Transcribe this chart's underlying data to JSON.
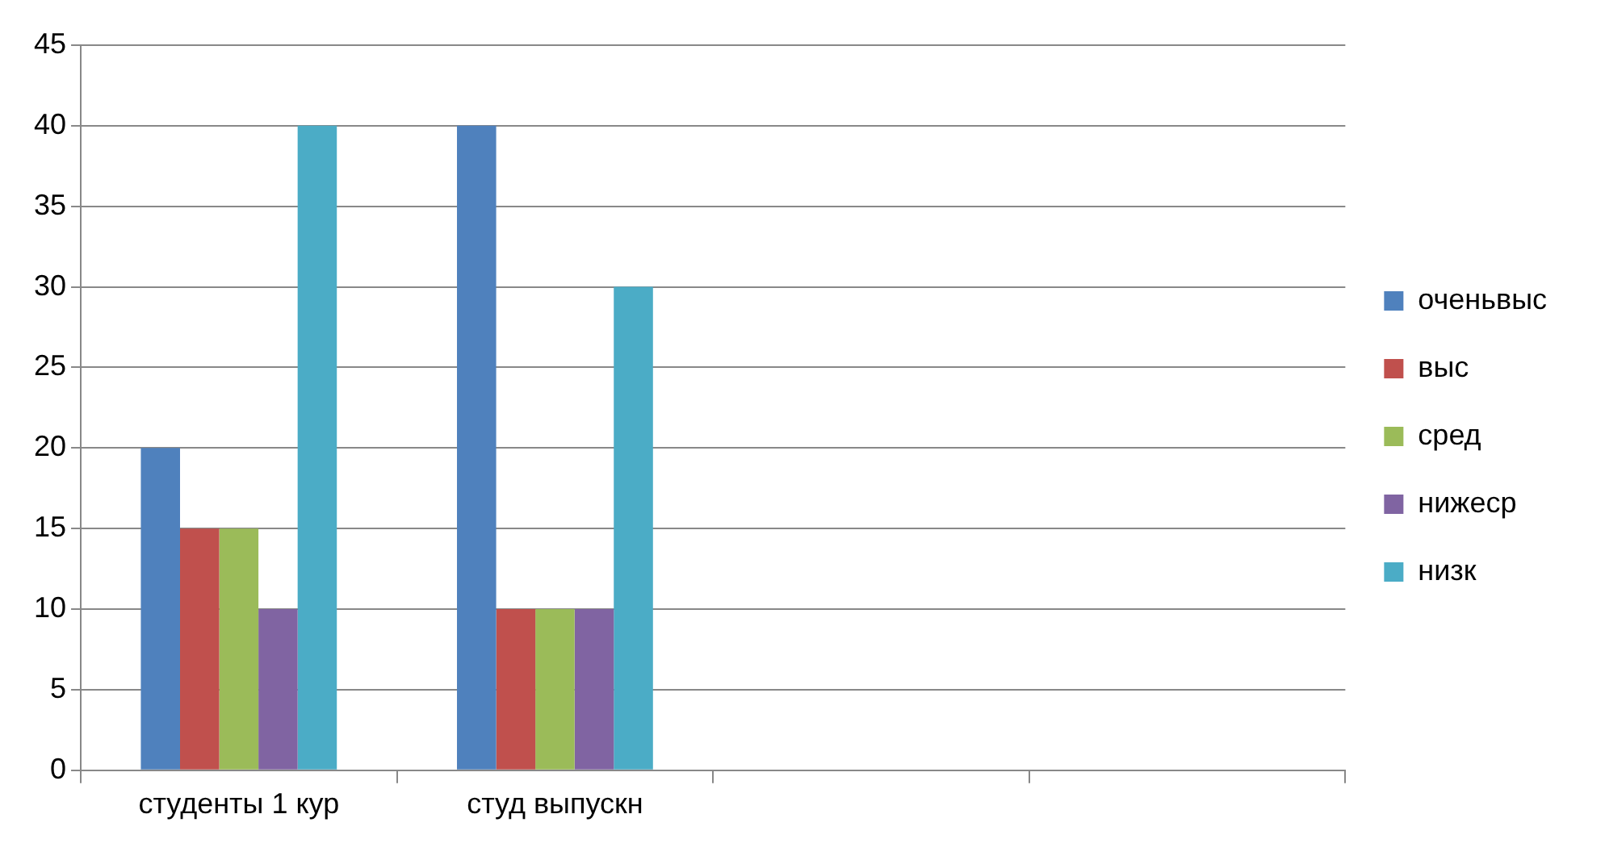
{
  "chart_data": {
    "type": "bar",
    "categories": [
      "студенты 1 кур",
      "студ выпускн",
      null,
      null
    ],
    "series": [
      {
        "name": "оченьвыс",
        "color": "#4f81bd",
        "values": [
          20,
          40,
          null,
          null
        ]
      },
      {
        "name": "выс",
        "color": "#c0504d",
        "values": [
          15,
          10,
          null,
          null
        ]
      },
      {
        "name": "сред",
        "color": "#9bbb59",
        "values": [
          15,
          10,
          null,
          null
        ]
      },
      {
        "name": "нижеср",
        "color": "#8064a2",
        "values": [
          10,
          10,
          null,
          null
        ]
      },
      {
        "name": "низк",
        "color": "#4bacc6",
        "values": [
          40,
          30,
          null,
          null
        ]
      }
    ],
    "ylim": [
      0,
      45
    ],
    "yticks": [
      0,
      5,
      10,
      15,
      20,
      25,
      30,
      35,
      40,
      45
    ],
    "grid": "y",
    "legend": "right"
  }
}
